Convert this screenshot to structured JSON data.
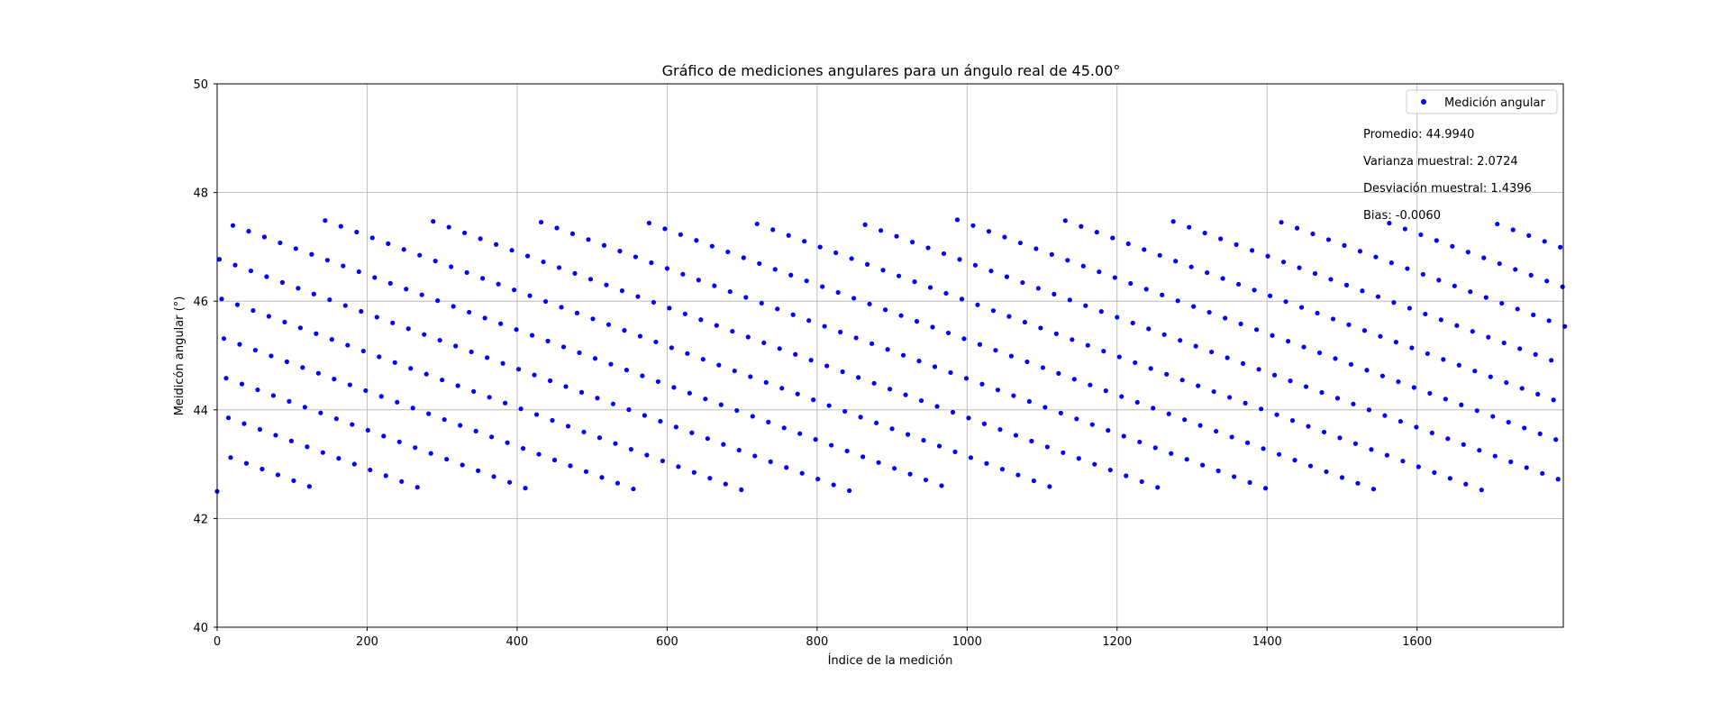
{
  "chart_data": {
    "type": "scatter",
    "title": "Gráfico de mediciones angulares para un ángulo real de 45.00°",
    "xlabel": "Índice de la medición",
    "ylabel": "Meidicón angular (°)",
    "xlim": [
      0,
      1795
    ],
    "ylim": [
      40,
      50
    ],
    "xticks": [
      0,
      200,
      400,
      600,
      800,
      1000,
      1200,
      1400,
      1600
    ],
    "yticks": [
      40,
      42,
      44,
      46,
      48,
      50
    ],
    "grid": true,
    "legend": {
      "placement": "top-right",
      "entries": [
        "Medición angular"
      ]
    },
    "series": [
      {
        "name": "Medición angular",
        "color": "#0000ff",
        "marker": "circle",
        "n_points": 1800,
        "value_range": [
          42.5,
          47.5
        ],
        "pattern": "quasi-periodic uniform spread between 42.5 and 47.5"
      }
    ],
    "annotations": [
      "Promedio: 44.9940",
      "Varianza muestral: 2.0724",
      "Desviación muestral: 1.4396",
      "Bias: -0.0060"
    ]
  }
}
